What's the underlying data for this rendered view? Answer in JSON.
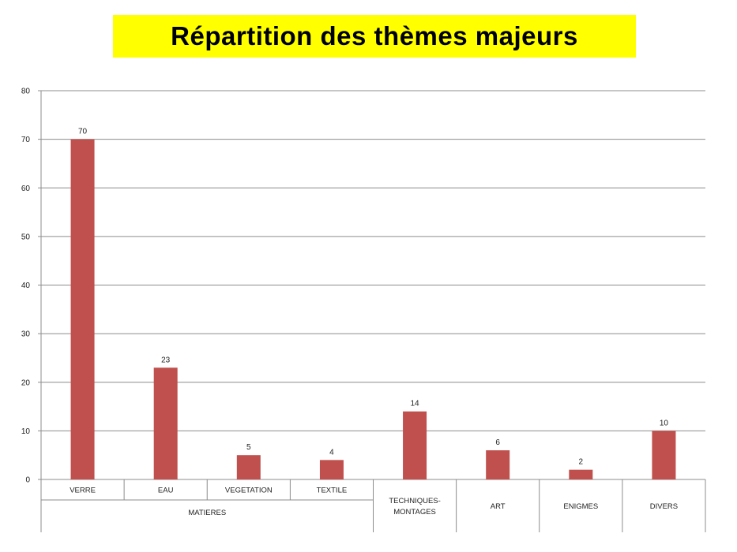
{
  "title": "Répartition des thèmes majeurs",
  "chart_data": {
    "type": "bar",
    "title": "Répartition des thèmes majeurs",
    "categories": [
      "VERRE",
      "EAU",
      "VEGETATION",
      "TEXTILE",
      "TECHNIQUES-MONTAGES",
      "ART",
      "ENIGMES",
      "DIVERS"
    ],
    "category_lines": [
      [
        "VERRE"
      ],
      [
        "EAU"
      ],
      [
        "VEGETATION"
      ],
      [
        "TEXTILE"
      ],
      [
        "TECHNIQUES-",
        "MONTAGES"
      ],
      [
        "ART"
      ],
      [
        "ENIGMES"
      ],
      [
        "DIVERS"
      ]
    ],
    "groups": [
      {
        "label": "MATIERES",
        "categories": [
          "VERRE",
          "EAU",
          "VEGETATION",
          "TEXTILE"
        ]
      }
    ],
    "values": [
      70,
      23,
      5,
      4,
      14,
      6,
      2,
      10
    ],
    "ylim": [
      0,
      80
    ],
    "yticks": [
      0,
      10,
      20,
      30,
      40,
      50,
      60,
      70,
      80
    ],
    "grid": true,
    "data_labels": true,
    "xlabel": "",
    "ylabel": "",
    "colors": {
      "bar": "#c0504d",
      "grid": "#8c8c8c",
      "title_bg": "#ffff00"
    }
  }
}
